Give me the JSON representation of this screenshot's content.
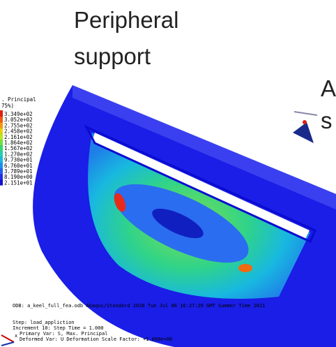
{
  "slide": {
    "heading_line1": "Peripheral",
    "heading_line2": "support",
    "side_text_line1": "A",
    "side_text_line2": "s"
  },
  "legend": {
    "title_line1": ". Principal",
    "title_line2": "75%)",
    "values": [
      "3.349e+02",
      "3.052e+02",
      "2.755e+02",
      "2.458e+02",
      "2.161e+02",
      "1.864e+02",
      "1.567e+02",
      "1.270e+02",
      "9.730e+01",
      "6.760e+01",
      "3.789e+01",
      "8.190e+00",
      "2.151e+01"
    ]
  },
  "footer": {
    "odb": "ODB: a_keel_full_fea.odb    Abaqus/Standard 2020    Tue Jul 06 16:27:20 GMT Summer Time 2021",
    "step": "Step: load_appliction",
    "increment": "Increment    10: Step Time =    1.000",
    "primary": "Primary Var: S, Max. Principal",
    "deformed": "Deformed Var: U   Deformation Scale Factor: +1.000e+00",
    "axis": "x"
  }
}
